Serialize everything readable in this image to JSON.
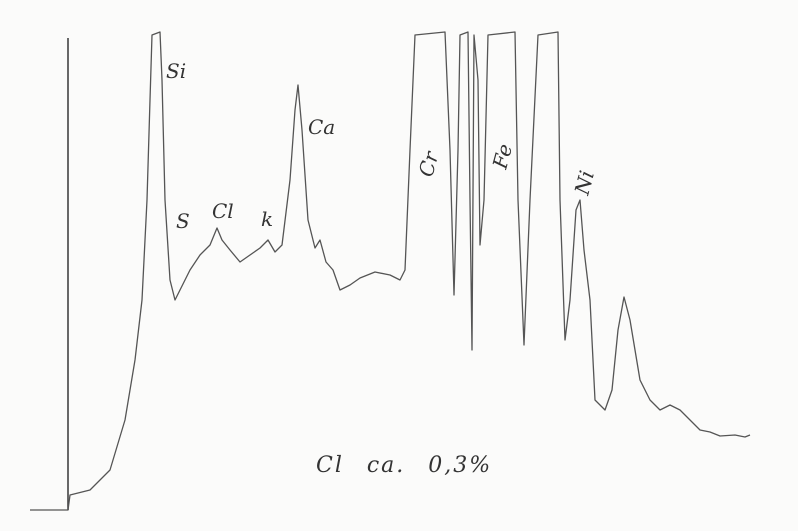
{
  "annotations": {
    "peaks": [
      "Si",
      "S",
      "Cl",
      "k",
      "Ca",
      "Cr",
      "Fe",
      "Ni"
    ],
    "note": "Cl ca. 0,3%"
  }
}
